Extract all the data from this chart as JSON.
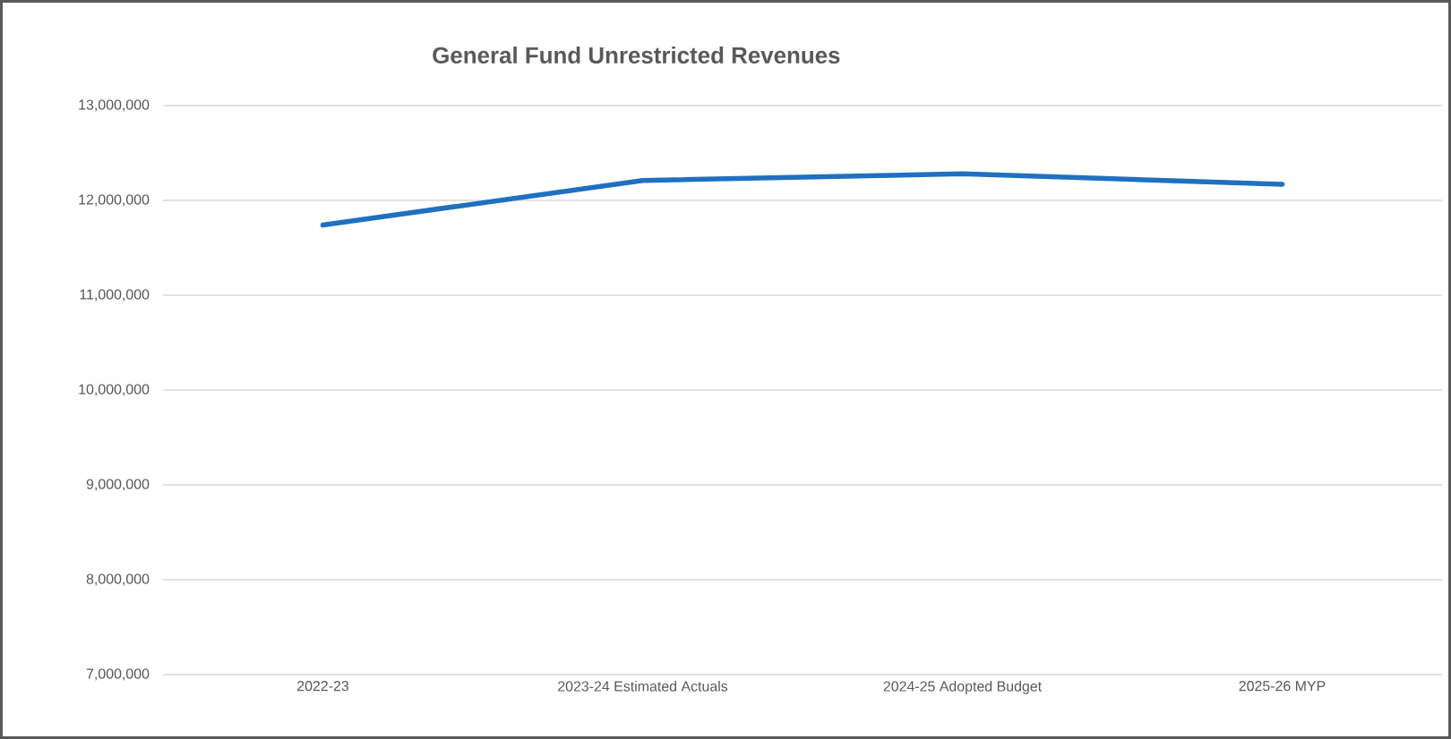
{
  "chart_data": {
    "type": "line",
    "title": "General Fund Unrestricted Revenues",
    "categories": [
      "2022-23",
      "2023-24 Estimated Actuals",
      "2024-25 Adopted Budget",
      "2025-26 MYP"
    ],
    "series": [
      {
        "color": "#1f70c1",
        "values": [
          11740000,
          12210000,
          12280000,
          12170000
        ]
      }
    ],
    "ylim": [
      7000000,
      13000000
    ],
    "yticks": [
      {
        "value": 7000000,
        "label": "7,000,000"
      },
      {
        "value": 8000000,
        "label": "8,000,000"
      },
      {
        "value": 9000000,
        "label": "9,000,000"
      },
      {
        "value": 10000000,
        "label": "10,000,000"
      },
      {
        "value": 11000000,
        "label": "11,000,000"
      },
      {
        "value": 12000000,
        "label": "12,000,000"
      },
      {
        "value": 13000000,
        "label": "13,000,000"
      }
    ],
    "grid": "y",
    "marker": "none",
    "line_style": "solid"
  }
}
